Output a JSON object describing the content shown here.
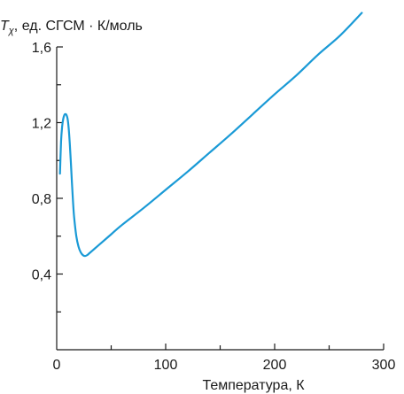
{
  "chart_data": {
    "type": "line",
    "ylabel": {
      "symbol": "T",
      "subscript": "χ",
      "rest": ", ед. СГСМ · К/моль"
    },
    "xlabel": "Температура, К",
    "xlim": [
      0,
      300
    ],
    "ylim": [
      0,
      1.6
    ],
    "x_ticks": [
      0,
      100,
      200,
      300
    ],
    "x_tick_labels": [
      "0",
      "100",
      "200",
      "300"
    ],
    "x_minor_ticks": [
      50,
      150,
      250
    ],
    "y_ticks": [
      0.4,
      0.8,
      1.2,
      1.6
    ],
    "y_tick_labels": [
      "0,4",
      "0,8",
      "1,2",
      "1,6"
    ],
    "y_minor_ticks": [
      0.2,
      0.6,
      1.0,
      1.4
    ],
    "grid": false,
    "series": [
      {
        "color": "#1a9ad6",
        "x": [
          3,
          4,
          5,
          6,
          7,
          8,
          9,
          10,
          11,
          12,
          13,
          14,
          15,
          16,
          18,
          20,
          22,
          24,
          26,
          28,
          30,
          35,
          40,
          50,
          60,
          80,
          100,
          120,
          140,
          160,
          180,
          200,
          220,
          240,
          260,
          280
        ],
        "y": [
          0.93,
          1.1,
          1.18,
          1.22,
          1.24,
          1.245,
          1.24,
          1.22,
          1.17,
          1.09,
          0.99,
          0.88,
          0.78,
          0.7,
          0.6,
          0.545,
          0.515,
          0.5,
          0.495,
          0.5,
          0.51,
          0.535,
          0.56,
          0.61,
          0.66,
          0.75,
          0.845,
          0.94,
          1.04,
          1.14,
          1.245,
          1.35,
          1.45,
          1.56,
          1.66,
          1.78
        ]
      }
    ]
  }
}
